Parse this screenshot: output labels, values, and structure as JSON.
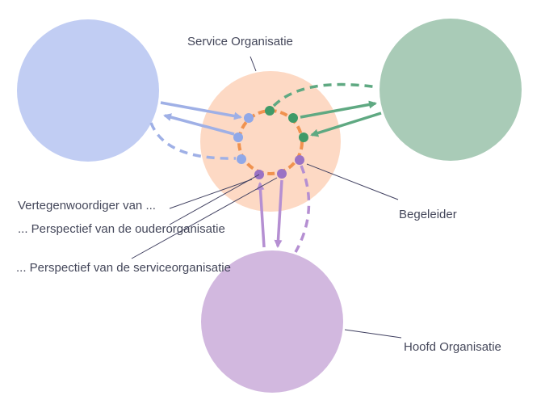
{
  "labels": {
    "service_org": "Service Organisatie",
    "representative": "Vertegenwoordiger van ...",
    "perspective_parent": "... Perspectief van de ouderorganisatie",
    "perspective_service": "... Perspectief van de serviceorganisatie",
    "supervisor": "Begeleider",
    "head_org": "Hoofd Organisatie"
  },
  "colors": {
    "blue_org": "#c1cdf3",
    "green_org": "#a9cbb7",
    "purple_org": "#d2b8df",
    "service_org": "#fdd9c4",
    "ring": "#f0924f",
    "blue_node": "#90a8e8",
    "green_node": "#3f9a68",
    "purple_node": "#9a72c4",
    "blue_arrow": "#9fb0e6",
    "green_arrow": "#5fa982",
    "purple_arrow": "#b58fd2",
    "leader_line": "#404060",
    "text": "#44475a"
  }
}
